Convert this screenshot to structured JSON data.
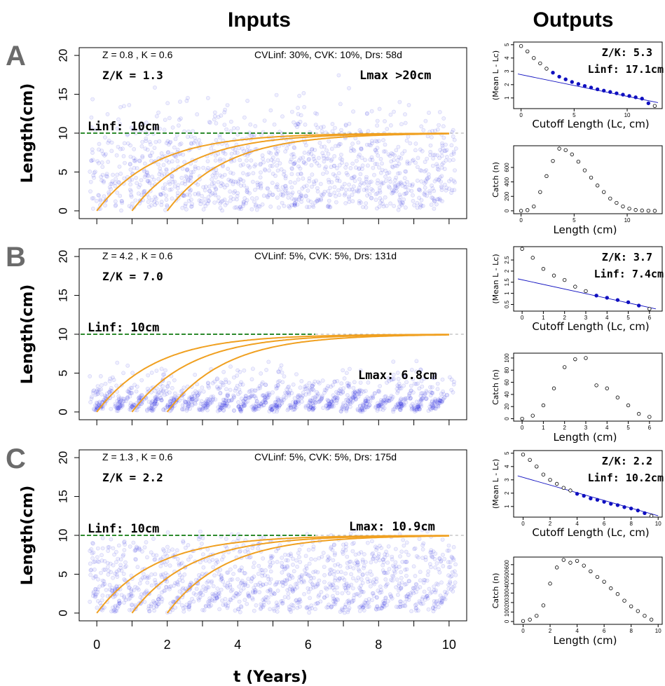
{
  "headers": {
    "inputs": "Inputs",
    "outputs": "Outputs"
  },
  "axes": {
    "input_ylabel": "Length(cm)",
    "input_xlabel": "t (Years)",
    "input_xticks": [
      0,
      2,
      4,
      6,
      8,
      10
    ],
    "input_yticks": [
      0,
      5,
      10,
      15,
      20
    ],
    "output_mean_ylabel": "(Mean L - Lc)",
    "output_mean_xlabel": "Cutoff Length (Lc, cm)",
    "output_catch_ylabel": "Catch (n)",
    "output_catch_xlabel": "Length (cm)"
  },
  "colors": {
    "points": "#1f1fe0",
    "vb_curve": "#f0a020",
    "linf_line": "#2e8b2e",
    "regression": "#1010c0",
    "letter": "#6b6b6b"
  },
  "chart_data": [
    {
      "panel": "A",
      "type": "scatter",
      "role": "inputs",
      "param_line": "Z = 0.8 , K = 0.6",
      "cv_line": "CVLinf: 30%, CVK: 10%, Drs: 58d",
      "zk_label": "Z/K = 1.3",
      "lmax_label": "Lmax >20cm",
      "linf_label": "Linf: 10cm",
      "linf": 10,
      "k": 0.6,
      "t0s": [
        0,
        1,
        2
      ],
      "spread": 0.3,
      "xlim": [
        -0.5,
        10.5
      ],
      "ylim": [
        -1,
        21
      ]
    },
    {
      "panel": "A",
      "type": "scatter",
      "role": "mean_length",
      "zk_label": "Z/K: 5.3",
      "linf_label": "Linf: 17.1cm",
      "xticks": [
        0,
        5,
        10
      ],
      "yticks": [
        1,
        2,
        3,
        4,
        5
      ],
      "xlim": [
        -0.7,
        13.3
      ],
      "ylim": [
        0.2,
        5.2
      ],
      "x": [
        0,
        0.6,
        1.2,
        1.8,
        2.4,
        3.0,
        3.6,
        4.2,
        4.8,
        5.4,
        6.0,
        6.6,
        7.2,
        7.8,
        8.4,
        9.0,
        9.6,
        10.2,
        10.8,
        11.4,
        12.0,
        12.6
      ],
      "y": [
        4.9,
        4.5,
        4.0,
        3.6,
        3.2,
        2.9,
        2.6,
        2.4,
        2.2,
        2.05,
        1.9,
        1.78,
        1.65,
        1.55,
        1.45,
        1.35,
        1.25,
        1.15,
        1.05,
        0.95,
        0.6,
        0.4
      ],
      "fit_from": 3.0,
      "fit_line": [
        [
          -0.3,
          2.8
        ],
        [
          12.9,
          0.65
        ]
      ]
    },
    {
      "panel": "A",
      "type": "scatter",
      "role": "catch",
      "xticks": [
        0,
        5,
        10
      ],
      "yticks": [
        0,
        200,
        400,
        600
      ],
      "xlim": [
        -0.7,
        13.3
      ],
      "ylim": [
        -40,
        900
      ],
      "x": [
        0,
        0.6,
        1.2,
        1.8,
        2.4,
        3.0,
        3.6,
        4.2,
        4.8,
        5.4,
        6.0,
        6.6,
        7.2,
        7.8,
        8.4,
        9.0,
        9.6,
        10.2,
        10.8,
        11.4,
        12.0,
        12.6
      ],
      "y": [
        0,
        10,
        60,
        260,
        480,
        690,
        860,
        840,
        780,
        680,
        560,
        460,
        350,
        260,
        170,
        110,
        60,
        30,
        12,
        5,
        2,
        0
      ]
    },
    {
      "panel": "B",
      "type": "scatter",
      "role": "inputs",
      "param_line": "Z = 4.2 , K = 0.6",
      "cv_line": "CVLinf: 5%, CVK: 5%, Drs: 131d",
      "zk_label": "Z/K = 7.0",
      "lmax_label": "Lmax: 6.8cm",
      "linf_label": "Linf: 10cm",
      "linf": 10,
      "k": 0.6,
      "t0s": [
        0,
        1,
        2
      ],
      "spread": 0.05,
      "xlim": [
        -0.5,
        10.5
      ],
      "ylim": [
        -1,
        21
      ]
    },
    {
      "panel": "B",
      "type": "scatter",
      "role": "mean_length",
      "zk_label": "Z/K: 3.7",
      "linf_label": "Linf: 7.4cm",
      "xticks": [
        0,
        1,
        2,
        3,
        4,
        5,
        6
      ],
      "yticks": [
        0.5,
        1.0,
        1.5,
        2.0,
        2.5
      ],
      "xlim": [
        -0.4,
        6.6
      ],
      "ylim": [
        0.2,
        3.1
      ],
      "x": [
        0,
        0.5,
        1.0,
        1.5,
        2.0,
        2.5,
        3.0,
        3.5,
        4.0,
        4.5,
        5.0,
        5.5,
        6.0
      ],
      "y": [
        3.0,
        2.6,
        2.1,
        1.8,
        1.6,
        1.3,
        1.1,
        0.9,
        0.8,
        0.7,
        0.6,
        0.45,
        0.3
      ],
      "fit_from": 3.5,
      "fit_line": [
        [
          -0.2,
          1.65
        ],
        [
          6.3,
          0.3
        ]
      ]
    },
    {
      "panel": "B",
      "type": "scatter",
      "role": "catch",
      "xticks": [
        0,
        1,
        2,
        3,
        4,
        5,
        6
      ],
      "yticks": [
        0,
        20,
        40,
        60,
        80,
        100
      ],
      "xlim": [
        -0.4,
        6.6
      ],
      "ylim": [
        -4,
        108
      ],
      "x": [
        0,
        0.5,
        1.0,
        1.5,
        2.0,
        2.5,
        3.0,
        3.5,
        4.0,
        4.5,
        5.0,
        5.5,
        6.0
      ],
      "y": [
        0,
        5,
        22,
        50,
        85,
        98,
        100,
        55,
        50,
        35,
        22,
        8,
        3
      ]
    },
    {
      "panel": "C",
      "type": "scatter",
      "role": "inputs",
      "param_line": "Z = 1.3 , K = 0.6",
      "cv_line": "CVLinf: 5%, CVK: 5%, Drs: 175d",
      "zk_label": "Z/K = 2.2",
      "lmax_label": "Lmax: 10.9cm",
      "linf_label": "Linf: 10cm",
      "linf": 10,
      "k": 0.6,
      "t0s": [
        0,
        1,
        2
      ],
      "spread": 0.06,
      "xlim": [
        -0.5,
        10.5
      ],
      "ylim": [
        -1,
        21
      ]
    },
    {
      "panel": "C",
      "type": "scatter",
      "role": "mean_length",
      "zk_label": "Z/K: 2.2",
      "linf_label": "Linf: 10.2cm",
      "xticks": [
        0,
        2,
        4,
        6,
        8,
        10
      ],
      "yticks": [
        1,
        2,
        3,
        4,
        5
      ],
      "xlim": [
        -0.7,
        10.3
      ],
      "ylim": [
        0.2,
        5.2
      ],
      "x": [
        0,
        0.5,
        1.0,
        1.5,
        2.0,
        2.5,
        3.0,
        3.5,
        4.0,
        4.5,
        5.0,
        5.5,
        6.0,
        6.5,
        7.0,
        7.5,
        8.0,
        8.5,
        9.0,
        9.5
      ],
      "y": [
        4.9,
        4.5,
        4.0,
        3.4,
        3.0,
        2.7,
        2.4,
        2.2,
        1.95,
        1.8,
        1.6,
        1.5,
        1.35,
        1.2,
        1.1,
        0.95,
        0.85,
        0.7,
        0.5,
        0.3
      ],
      "fit_from": 4.0,
      "fit_line": [
        [
          -0.4,
          3.3
        ],
        [
          10.0,
          0.3
        ]
      ]
    },
    {
      "panel": "C",
      "type": "scatter",
      "role": "catch",
      "xticks": [
        0,
        2,
        4,
        6,
        8,
        10
      ],
      "yticks": [
        0,
        100,
        200,
        300,
        400,
        500,
        600
      ],
      "xlim": [
        -0.7,
        10.3
      ],
      "ylim": [
        -30,
        680
      ],
      "x": [
        0,
        0.5,
        1.0,
        1.5,
        2.0,
        2.5,
        3.0,
        3.5,
        4.0,
        4.5,
        5.0,
        5.5,
        6.0,
        6.5,
        7.0,
        7.5,
        8.0,
        8.5,
        9.0,
        9.5
      ],
      "y": [
        5,
        20,
        60,
        170,
        400,
        570,
        650,
        620,
        640,
        590,
        530,
        470,
        420,
        350,
        290,
        220,
        160,
        110,
        60,
        20
      ]
    }
  ]
}
